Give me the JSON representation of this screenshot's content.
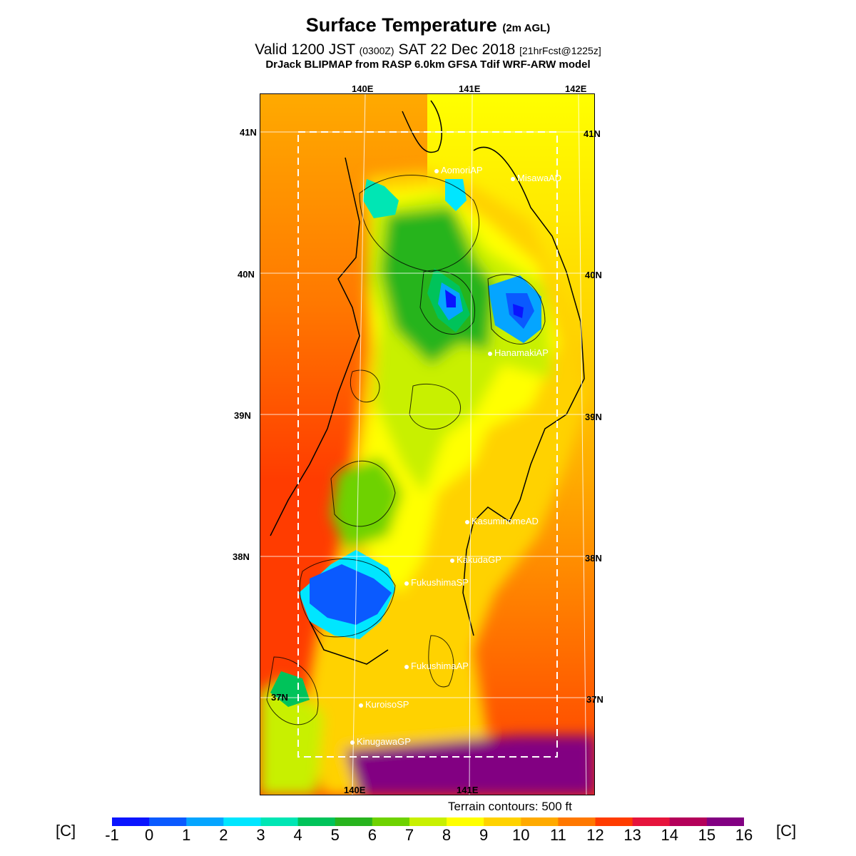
{
  "header": {
    "title": "Surface Temperature",
    "title_qualifier": "(2m AGL)",
    "valid_prefix": "Valid 1200 JST",
    "valid_zulu": "(0300Z)",
    "valid_date": "SAT 22 Dec 2018",
    "forecast_info": "[21hrFcst@1225z]",
    "model_line": "DrJack BLIPMAP from RASP 6.0km GFSA Tdif WRF-ARW model"
  },
  "map": {
    "lon_labels": [
      "140E",
      "141E",
      "142E"
    ],
    "lat_labels": [
      "41N",
      "40N",
      "39N",
      "38N",
      "37N"
    ],
    "stations": [
      {
        "name": "AomoriAP",
        "lon": 140.69,
        "lat": 40.73
      },
      {
        "name": "MisawaAD",
        "lon": 141.37,
        "lat": 40.68
      },
      {
        "name": "HanamakiAP",
        "lon": 141.13,
        "lat": 39.43
      },
      {
        "name": "KasuminomeAD",
        "lon": 140.97,
        "lat": 38.24
      },
      {
        "name": "KakudaGP",
        "lon": 140.85,
        "lat": 37.98
      },
      {
        "name": "FukushimaSP",
        "lon": 140.47,
        "lat": 37.82
      },
      {
        "name": "FukushimaAP",
        "lon": 140.47,
        "lat": 37.23
      },
      {
        "name": "KuroisoSP",
        "lon": 140.03,
        "lat": 36.97
      },
      {
        "name": "KinugawaGP",
        "lon": 139.95,
        "lat": 36.7
      }
    ],
    "terrain_note": "Terrain contours: 500 ft"
  },
  "colorbar": {
    "unit": "[C]",
    "ticks": [
      "-1",
      "0",
      "1",
      "2",
      "3",
      "4",
      "5",
      "6",
      "7",
      "8",
      "9",
      "10",
      "11",
      "12",
      "13",
      "14",
      "15",
      "16"
    ],
    "colors": [
      "#0a14ff",
      "#0a5aff",
      "#05a5ff",
      "#00e6ff",
      "#00e6b4",
      "#00c35a",
      "#28b41e",
      "#6ed200",
      "#c8f000",
      "#ffff00",
      "#ffd200",
      "#ffaa00",
      "#ff7800",
      "#ff3c00",
      "#e6143c",
      "#b4005a",
      "#820082"
    ]
  }
}
